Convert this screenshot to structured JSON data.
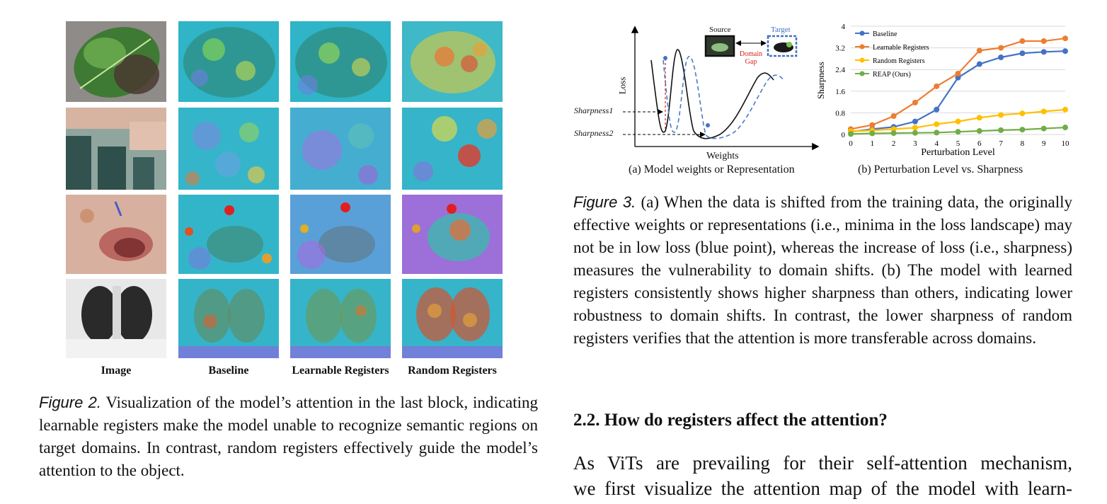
{
  "figure2": {
    "columns": [
      "Image",
      "Baseline",
      "Learnable Registers",
      "Random Registers"
    ],
    "caption_tag": "Figure 2.",
    "caption_text": "Visualization of the model’s attention in the last block, indicating learnable registers make the model unable to recognize semantic regions on target domains. In contrast, random registers effectively guide the model’s attention to the object."
  },
  "figure3": {
    "panel_a": {
      "ylabel": "Loss",
      "xlabel": "Weights",
      "sharpness1": "Sharpness1",
      "sharpness2": "Sharpness2",
      "source": "Source",
      "target": "Target",
      "domain_gap": "Domain Gap",
      "caption": "(a) Model weights or Representation"
    },
    "panel_b": {
      "caption": "(b) Perturbation Level vs. Sharpness"
    },
    "caption_tag": "Figure 3.",
    "caption_text": "(a) When the data is shifted from the training data, the originally effective weights or representations (i.e., minima in the loss landscape) may not be in low loss (blue point), whereas the increase of loss (i.e., sharpness) measures the vulnerability to domain shifts. (b) The model with learned registers consistently shows higher sharpness than others, indicating lower robustness to domain shifts. In contrast, the lower sharpness of random registers verifies that the attention is more transferable across domains."
  },
  "section": {
    "heading": "2.2. How do registers affect the attention?",
    "body_line1": "As ViTs are prevailing for their self-attention mechanism,",
    "body_line2": "we first visualize the attention map of the model with learn-"
  },
  "chart_data": {
    "type": "line",
    "title": "",
    "xlabel": "Perturbation Level",
    "ylabel": "Sharpness",
    "x": [
      0,
      1,
      2,
      3,
      4,
      5,
      6,
      7,
      8,
      9,
      10
    ],
    "xlim": [
      0,
      10
    ],
    "ylim": [
      0,
      4
    ],
    "yticks": [
      "0",
      "0.8",
      "1.6",
      "2.4",
      "3.2",
      "4"
    ],
    "grid": true,
    "legend": "top-left",
    "series": [
      {
        "name": "Baseline",
        "color": "#4472c4",
        "values": [
          0.1,
          0.2,
          0.28,
          0.48,
          0.92,
          2.1,
          2.6,
          2.85,
          3.0,
          3.05,
          3.08
        ]
      },
      {
        "name": "Learnable Registers",
        "color": "#ed7d31",
        "values": [
          0.2,
          0.35,
          0.68,
          1.18,
          1.78,
          2.25,
          3.1,
          3.2,
          3.45,
          3.45,
          3.55
        ]
      },
      {
        "name": "Random Registers",
        "color": "#ffc000",
        "values": [
          0.12,
          0.15,
          0.2,
          0.25,
          0.38,
          0.48,
          0.62,
          0.72,
          0.78,
          0.85,
          0.92
        ]
      },
      {
        "name": "REAP (Ours)",
        "color": "#70ad47",
        "values": [
          0.02,
          0.04,
          0.05,
          0.06,
          0.07,
          0.1,
          0.13,
          0.16,
          0.18,
          0.22,
          0.26
        ]
      }
    ]
  }
}
